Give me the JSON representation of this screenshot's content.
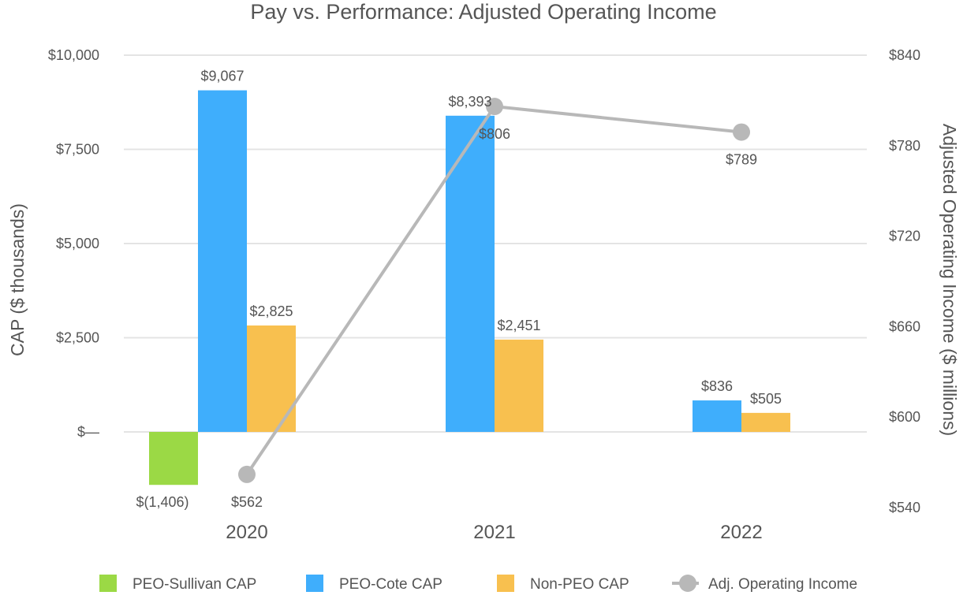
{
  "chart_data": {
    "type": "bar",
    "title": "Pay vs. Performance: Adjusted Operating Income",
    "categories": [
      "2020",
      "2021",
      "2022"
    ],
    "ylabel": "CAP ($ thousands)",
    "y2label": "Adjusted Operating Income ($ millions)",
    "ylim": [
      -2400,
      10000
    ],
    "y2lim": [
      540,
      840
    ],
    "yticks": [
      {
        "value": 0,
        "label": "$—"
      },
      {
        "value": 2500,
        "label": "$2,500"
      },
      {
        "value": 5000,
        "label": "$5,000"
      },
      {
        "value": 7500,
        "label": "$7,500"
      },
      {
        "value": 10000,
        "label": "$10,000"
      }
    ],
    "y2ticks": [
      {
        "value": 540,
        "label": "$540"
      },
      {
        "value": 600,
        "label": "$600"
      },
      {
        "value": 660,
        "label": "$660"
      },
      {
        "value": 720,
        "label": "$720"
      },
      {
        "value": 780,
        "label": "$780"
      },
      {
        "value": 840,
        "label": "$840"
      }
    ],
    "grid": true,
    "legend_position": "bottom",
    "series": [
      {
        "name": "PEO-Sullivan CAP",
        "kind": "bar",
        "axis": "left",
        "color": "#9bd945",
        "values": [
          -1406,
          null,
          null
        ],
        "labels": [
          "$(1,406)",
          null,
          null
        ]
      },
      {
        "name": "PEO-Cote CAP",
        "kind": "bar",
        "axis": "left",
        "color": "#3faefc",
        "values": [
          9067,
          8393,
          836
        ],
        "labels": [
          "$9,067",
          "$8,393",
          "$836"
        ]
      },
      {
        "name": "Non-PEO CAP",
        "kind": "bar",
        "axis": "left",
        "color": "#f8c04f",
        "values": [
          2825,
          2451,
          505
        ],
        "labels": [
          "$2,825",
          "$2,451",
          "$505"
        ]
      },
      {
        "name": "Adj. Operating Income",
        "kind": "line",
        "axis": "right",
        "color": "#b8b8b8",
        "values": [
          562,
          806,
          789
        ],
        "labels": [
          "$562",
          "$806",
          "$789"
        ]
      }
    ]
  }
}
